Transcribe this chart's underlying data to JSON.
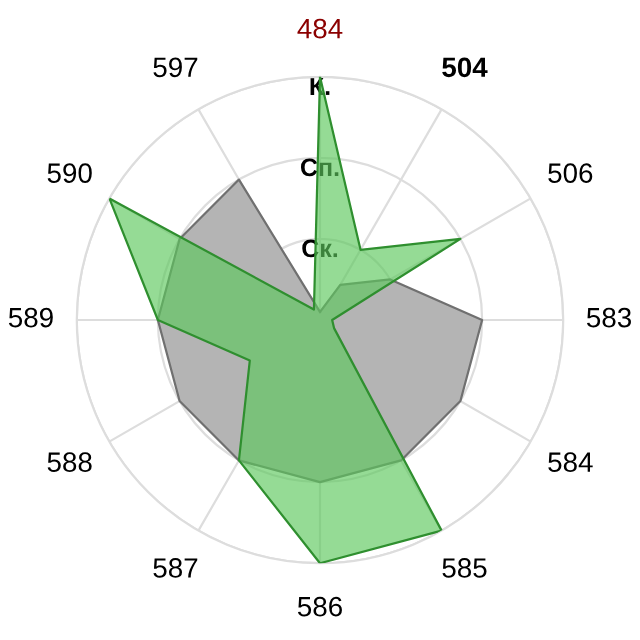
{
  "chart_data": {
    "type": "radar",
    "categories": [
      "484",
      "504",
      "506",
      "583",
      "584",
      "585",
      "586",
      "587",
      "588",
      "589",
      "590",
      "597"
    ],
    "series": [
      {
        "color": "#b4b4b4",
        "values": [
          0.1,
          0.5,
          1.0,
          2.0,
          2.0,
          2.0,
          2.0,
          2.0,
          2.0,
          2.0,
          2.0,
          2.0
        ]
      },
      {
        "color": "#5cc85c",
        "values": [
          3.0,
          1.0,
          2.0,
          0.15,
          0.2,
          3.0,
          3.0,
          2.0,
          1.0,
          2.0,
          3.0,
          0.15
        ]
      }
    ],
    "ylim": [
      0,
      3
    ],
    "yticks": [
      {
        "value": 1,
        "label": "Ск."
      },
      {
        "value": 2,
        "label": "Сп."
      },
      {
        "value": 3,
        "label": "К."
      }
    ],
    "grid": true
  }
}
